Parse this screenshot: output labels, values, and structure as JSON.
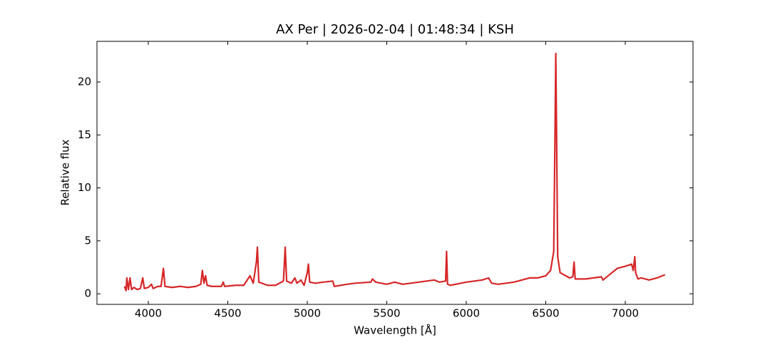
{
  "chart_data": {
    "type": "line",
    "title": "AX Per | 2026-02-04 | 01:48:34 | KSH",
    "xlabel": "Wavelength [Å]",
    "ylabel": "Relative flux",
    "color": "#d62728",
    "xlim": [
      3677,
      7426
    ],
    "ylim": [
      -1.0,
      23.84
    ],
    "xticks": [
      4000,
      4500,
      5000,
      5500,
      6000,
      6500,
      7000
    ],
    "yticks": [
      0,
      5,
      10,
      15,
      20
    ],
    "x": [
      3850,
      3860,
      3865,
      3875,
      3885,
      3895,
      3910,
      3930,
      3950,
      3965,
      3975,
      4000,
      4020,
      4030,
      4060,
      4080,
      4095,
      4105,
      4150,
      4200,
      4250,
      4300,
      4330,
      4340,
      4350,
      4360,
      4370,
      4400,
      4460,
      4471,
      4480,
      4550,
      4600,
      4640,
      4660,
      4680,
      4686,
      4695,
      4750,
      4800,
      4850,
      4861,
      4870,
      4900,
      4922,
      4935,
      4960,
      4980,
      5000,
      5007,
      5015,
      5050,
      5100,
      5160,
      5170,
      5250,
      5300,
      5400,
      5410,
      5430,
      5500,
      5550,
      5600,
      5700,
      5800,
      5830,
      5870,
      5876,
      5882,
      5900,
      6000,
      6100,
      6140,
      6160,
      6200,
      6300,
      6400,
      6450,
      6500,
      6530,
      6550,
      6558,
      6563,
      6568,
      6575,
      6590,
      6650,
      6670,
      6678,
      6685,
      6750,
      6800,
      6850,
      6860,
      6900,
      6950,
      7000,
      7040,
      7050,
      7060,
      7065,
      7080,
      7100,
      7150,
      7200,
      7250
    ],
    "values": [
      0.7,
      0.3,
      1.5,
      0.4,
      1.5,
      0.4,
      0.6,
      0.4,
      0.5,
      1.5,
      0.5,
      0.6,
      0.9,
      0.5,
      0.7,
      0.7,
      2.4,
      0.7,
      0.6,
      0.7,
      0.6,
      0.7,
      0.9,
      2.2,
      1.0,
      1.7,
      0.8,
      0.7,
      0.7,
      1.1,
      0.7,
      0.8,
      0.8,
      1.7,
      1.0,
      3.0,
      4.4,
      1.1,
      0.8,
      0.8,
      1.2,
      4.4,
      1.2,
      1.0,
      1.5,
      1.0,
      1.3,
      0.8,
      2.0,
      2.8,
      1.1,
      1.0,
      1.1,
      1.2,
      0.7,
      0.9,
      1.0,
      1.1,
      1.4,
      1.1,
      0.9,
      1.1,
      0.9,
      1.1,
      1.3,
      1.1,
      1.2,
      4.0,
      0.9,
      0.8,
      1.1,
      1.3,
      1.5,
      1.0,
      0.9,
      1.1,
      1.5,
      1.5,
      1.7,
      2.2,
      4.0,
      15,
      22.7,
      15,
      3.5,
      2.0,
      1.5,
      1.6,
      3.0,
      1.4,
      1.4,
      1.5,
      1.6,
      1.3,
      1.8,
      2.4,
      2.6,
      2.8,
      2.2,
      3.5,
      2.0,
      1.4,
      1.5,
      1.3,
      1.5,
      1.8
    ]
  }
}
